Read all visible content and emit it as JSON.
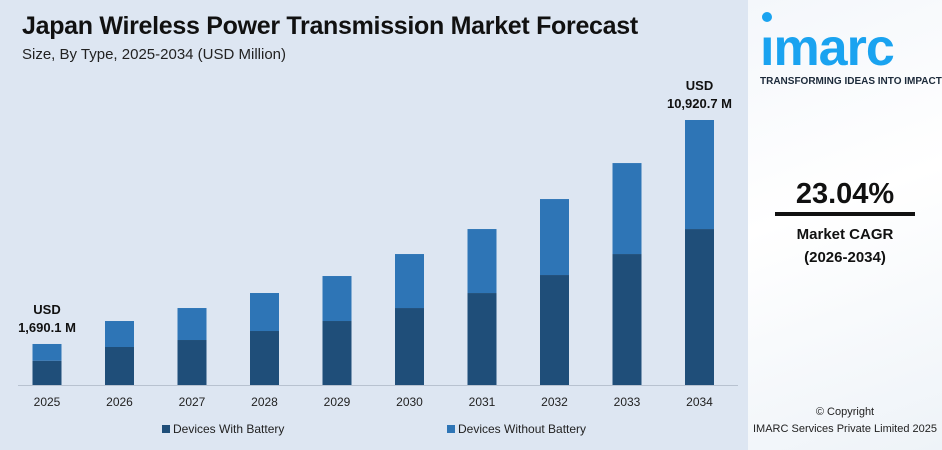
{
  "header": {
    "title": "Japan Wireless Power Transmission Market Forecast",
    "subtitle": "Size, By Type, 2025-2034 (USD Million)"
  },
  "chart_data": {
    "type": "bar",
    "stacked": true,
    "categories": [
      "2025",
      "2026",
      "2027",
      "2028",
      "2029",
      "2030",
      "2031",
      "2032",
      "2033",
      "2034"
    ],
    "series": [
      {
        "name": "Devices With Battery",
        "color": "#1f4e79",
        "values": [
          1000,
          1566,
          1854,
          2225,
          2637,
          3172,
          3790,
          4532,
          5397,
          6427
        ]
      },
      {
        "name": "Devices Without Battery",
        "color": "#2e75b6",
        "values": [
          690.1,
          1071,
          1318,
          1566,
          1854,
          2225,
          2637,
          3131,
          3749,
          4493.7
        ]
      }
    ],
    "annotations": [
      {
        "category": "2025",
        "line1": "USD",
        "line2": "1,690.1 M"
      },
      {
        "category": "2034",
        "line1": "USD",
        "line2": "10,920.7 M"
      }
    ],
    "legend_position": "bottom",
    "grid": false
  },
  "sidebar": {
    "logo": "imarc",
    "tagline": "TRANSFORMING IDEAS INTO IMPACT",
    "cagr_value": "23.04%",
    "cagr_label": "Market CAGR",
    "cagr_period": "(2026-2034)",
    "copyright": "© Copyright",
    "company": "IMARC Services Private Limited 2025"
  }
}
